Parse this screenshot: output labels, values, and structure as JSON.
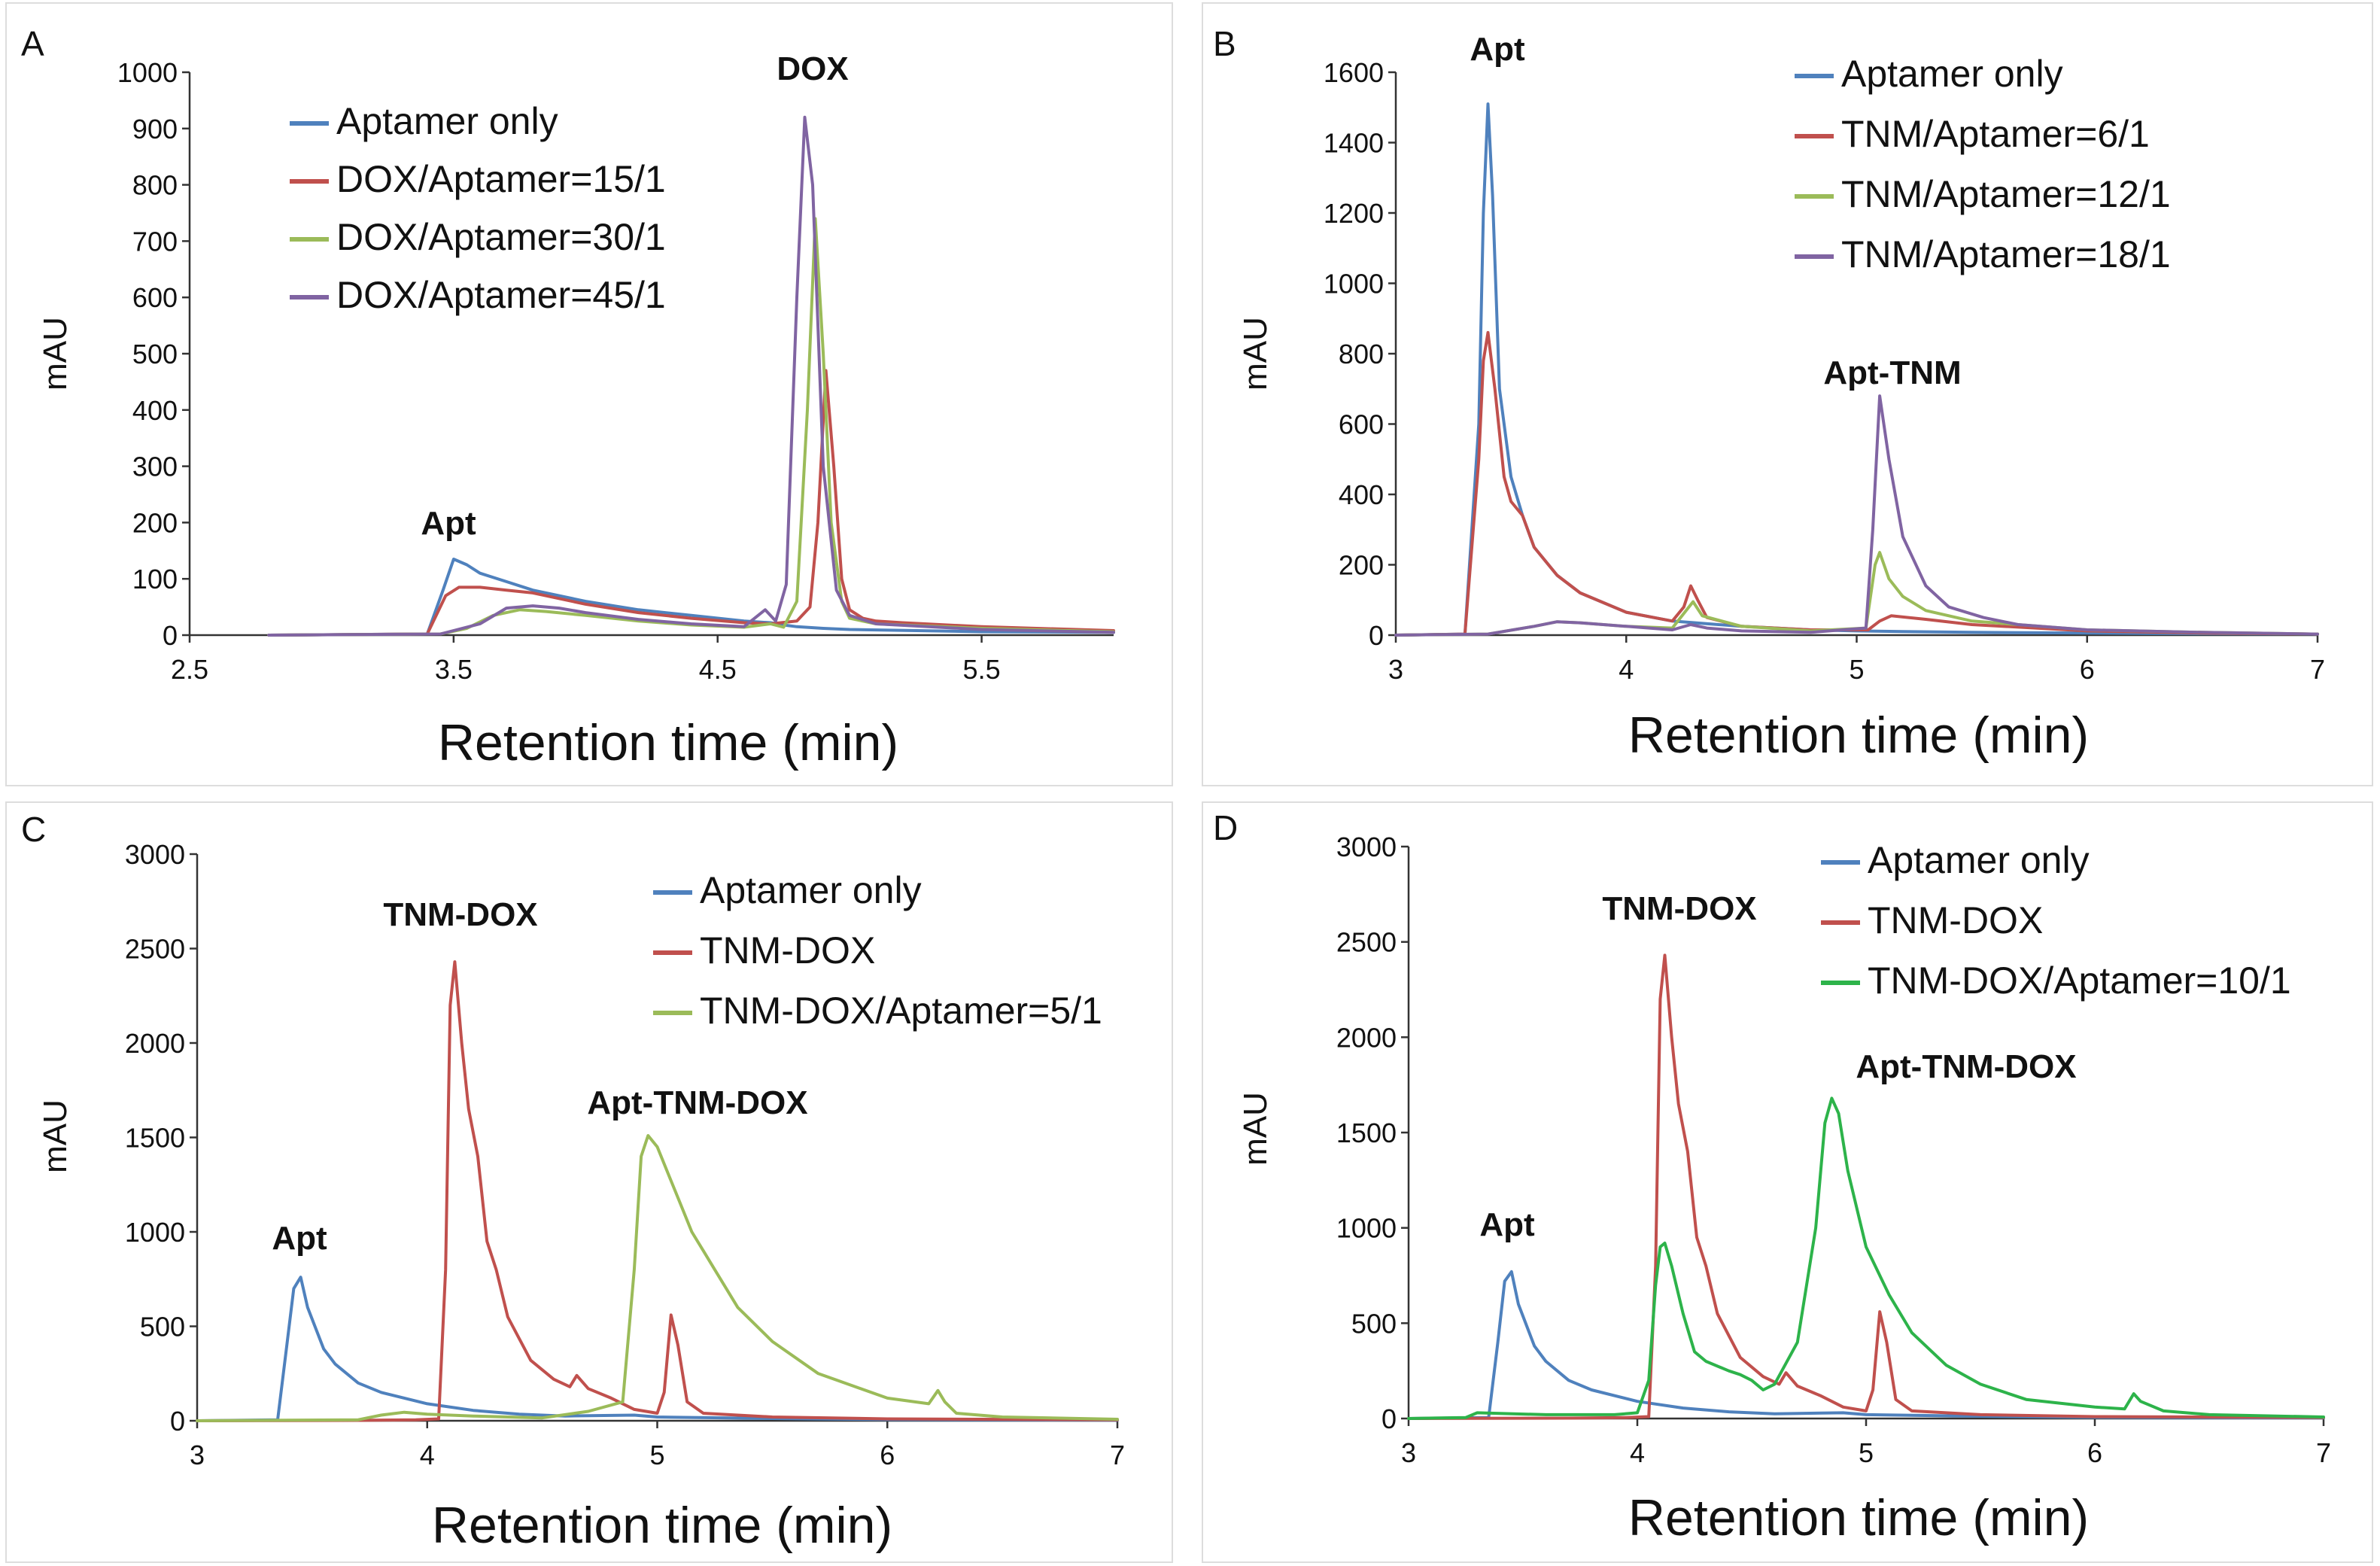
{
  "figure": {
    "panel_labels": [
      "A",
      "B",
      "C",
      "D"
    ]
  },
  "colors": {
    "blue": "#4f81bd",
    "red": "#c0504d",
    "lime": "#9bbb59",
    "purple": "#8064a2",
    "green": "#2db34a"
  },
  "chart_data": [
    {
      "panel": "A",
      "type": "line",
      "xlabel": "Retention time (min)",
      "ylabel": "mAU",
      "xlim": [
        2.5,
        6.0
      ],
      "ylim": [
        0,
        1000
      ],
      "xticks": [
        2.5,
        3.5,
        4.5,
        5.5
      ],
      "xtick_labels": [
        "2.5",
        "3.5",
        "4.5",
        "5.5"
      ],
      "yticks": [
        0,
        100,
        200,
        300,
        400,
        500,
        600,
        700,
        800,
        900,
        1000
      ],
      "ytick_labels": [
        "0",
        "100",
        "200",
        "300",
        "400",
        "500",
        "600",
        "700",
        "800",
        "900",
        "1000"
      ],
      "legend_position": "top-left",
      "annotations": [
        {
          "text": "DOX",
          "x": 4.85,
          "y": 1000
        },
        {
          "text": "Apt",
          "x": 3.45,
          "y": 190
        }
      ],
      "series": [
        {
          "name": "Aptamer only",
          "color": "#4f81bd",
          "x": [
            2.8,
            3.4,
            3.46,
            3.5,
            3.55,
            3.6,
            3.7,
            3.8,
            4.0,
            4.2,
            4.4,
            4.6,
            4.7,
            4.75,
            4.8,
            4.9,
            5.0,
            5.5,
            6.0
          ],
          "y": [
            0,
            2,
            80,
            135,
            125,
            110,
            95,
            80,
            60,
            45,
            35,
            25,
            22,
            18,
            15,
            12,
            10,
            6,
            5
          ]
        },
        {
          "name": "DOX/Aptamer=15/1",
          "color": "#c0504d",
          "x": [
            2.8,
            3.4,
            3.47,
            3.52,
            3.6,
            3.7,
            3.8,
            4.0,
            4.2,
            4.4,
            4.6,
            4.7,
            4.8,
            4.85,
            4.88,
            4.91,
            4.94,
            4.97,
            5.0,
            5.05,
            5.1,
            5.2,
            5.5,
            6.0
          ],
          "y": [
            0,
            2,
            70,
            85,
            85,
            80,
            75,
            55,
            40,
            30,
            22,
            20,
            25,
            50,
            200,
            470,
            300,
            100,
            45,
            30,
            25,
            22,
            15,
            8
          ]
        },
        {
          "name": "DOX/Aptamer=30/1",
          "color": "#9bbb59",
          "x": [
            2.8,
            3.45,
            3.55,
            3.65,
            3.75,
            3.85,
            4.0,
            4.2,
            4.4,
            4.6,
            4.7,
            4.75,
            4.8,
            4.84,
            4.87,
            4.9,
            4.93,
            4.97,
            5.0,
            5.1,
            5.5,
            6.0
          ],
          "y": [
            0,
            2,
            12,
            35,
            45,
            42,
            35,
            25,
            18,
            14,
            20,
            14,
            60,
            400,
            740,
            500,
            200,
            60,
            30,
            20,
            12,
            6
          ]
        },
        {
          "name": "DOX/Aptamer=45/1",
          "color": "#8064a2",
          "x": [
            2.8,
            3.45,
            3.6,
            3.7,
            3.8,
            3.9,
            4.0,
            4.2,
            4.4,
            4.6,
            4.68,
            4.72,
            4.76,
            4.8,
            4.83,
            4.86,
            4.9,
            4.95,
            5.0,
            5.1,
            5.5,
            6.0
          ],
          "y": [
            0,
            2,
            20,
            48,
            52,
            48,
            40,
            28,
            20,
            15,
            45,
            25,
            90,
            600,
            920,
            800,
            300,
            80,
            35,
            20,
            10,
            5
          ]
        }
      ]
    },
    {
      "panel": "B",
      "type": "line",
      "xlabel": "Retention time (min)",
      "ylabel": "mAU",
      "xlim": [
        3,
        7
      ],
      "ylim": [
        0,
        1600
      ],
      "xticks": [
        3,
        4,
        5,
        6,
        7
      ],
      "xtick_labels": [
        "3",
        "4",
        "5",
        "6",
        "7"
      ],
      "yticks": [
        0,
        200,
        400,
        600,
        800,
        1000,
        1200,
        1400,
        1600
      ],
      "ytick_labels": [
        "0",
        "200",
        "400",
        "600",
        "800",
        "1000",
        "1200",
        "1400",
        "1600"
      ],
      "legend_position": "top-right",
      "annotations": [
        {
          "text": "Apt",
          "x": 3.42,
          "y": 1600
        },
        {
          "text": "Apt-TNM",
          "x": 5.15,
          "y": 730
        }
      ],
      "series": [
        {
          "name": "Aptamer only",
          "color": "#4f81bd",
          "x": [
            3.0,
            3.3,
            3.36,
            3.38,
            3.4,
            3.42,
            3.45,
            3.5,
            3.55,
            3.6,
            3.7,
            3.8,
            4.0,
            4.2,
            4.5,
            4.8,
            5.0,
            5.2,
            5.5,
            6.0,
            6.5,
            7.0
          ],
          "y": [
            0,
            3,
            600,
            1200,
            1510,
            1250,
            700,
            450,
            340,
            250,
            170,
            120,
            65,
            40,
            25,
            15,
            12,
            10,
            8,
            6,
            4,
            3
          ]
        },
        {
          "name": "TNM/Aptamer=6/1",
          "color": "#c0504d",
          "x": [
            3.0,
            3.3,
            3.36,
            3.38,
            3.4,
            3.43,
            3.47,
            3.5,
            3.55,
            3.6,
            3.7,
            3.8,
            4.0,
            4.2,
            4.25,
            4.28,
            4.31,
            4.35,
            4.5,
            4.8,
            5.05,
            5.1,
            5.15,
            5.3,
            5.5,
            6.0,
            6.5,
            7.0
          ],
          "y": [
            0,
            3,
            500,
            780,
            860,
            700,
            450,
            380,
            340,
            250,
            170,
            120,
            65,
            40,
            80,
            140,
            100,
            50,
            25,
            15,
            15,
            40,
            55,
            45,
            30,
            12,
            6,
            3
          ]
        },
        {
          "name": "TNM/Aptamer=12/1",
          "color": "#9bbb59",
          "x": [
            3.0,
            3.4,
            3.6,
            3.7,
            3.8,
            4.0,
            4.2,
            4.26,
            4.29,
            4.33,
            4.5,
            4.8,
            5.04,
            5.08,
            5.1,
            5.14,
            5.2,
            5.3,
            5.5,
            6.0,
            6.5,
            7.0
          ],
          "y": [
            0,
            3,
            25,
            38,
            35,
            25,
            20,
            70,
            95,
            55,
            25,
            12,
            20,
            200,
            235,
            160,
            110,
            70,
            40,
            15,
            8,
            3
          ]
        },
        {
          "name": "TNM/Aptamer=18/1",
          "color": "#8064a2",
          "x": [
            3.0,
            3.4,
            3.6,
            3.7,
            3.8,
            4.0,
            4.2,
            4.28,
            4.35,
            4.5,
            4.8,
            5.04,
            5.07,
            5.1,
            5.14,
            5.2,
            5.3,
            5.4,
            5.55,
            5.7,
            6.0,
            6.5,
            7.0
          ],
          "y": [
            0,
            3,
            25,
            38,
            35,
            25,
            15,
            30,
            20,
            12,
            8,
            20,
            300,
            680,
            500,
            280,
            140,
            80,
            50,
            30,
            15,
            8,
            3
          ]
        }
      ]
    },
    {
      "panel": "C",
      "type": "line",
      "xlabel": "Retention time (min)",
      "ylabel": "mAU",
      "xlim": [
        3,
        7
      ],
      "ylim": [
        0,
        3000
      ],
      "xticks": [
        3,
        4,
        5,
        6,
        7
      ],
      "xtick_labels": [
        "3",
        "4",
        "5",
        "6",
        "7"
      ],
      "yticks": [
        0,
        500,
        1000,
        1500,
        2000,
        2500,
        3000
      ],
      "ytick_labels": [
        "0",
        "500",
        "1000",
        "1500",
        "2000",
        "2500",
        "3000"
      ],
      "legend_position": "top-right",
      "annotations": [
        {
          "text": "TNM-DOX",
          "x": 4.15,
          "y": 2630
        },
        {
          "text": "Apt-TNM-DOX",
          "x": 4.95,
          "y": 1620
        },
        {
          "text": "Apt",
          "x": 3.45,
          "y": 900
        }
      ],
      "series": [
        {
          "name": "Aptamer only",
          "color": "#4f81bd",
          "x": [
            3.0,
            3.35,
            3.39,
            3.42,
            3.45,
            3.48,
            3.55,
            3.6,
            3.7,
            3.8,
            4.0,
            4.2,
            4.4,
            4.6,
            4.9,
            5.0,
            5.5,
            6.0,
            7.0
          ],
          "y": [
            0,
            5,
            400,
            700,
            760,
            600,
            380,
            300,
            200,
            150,
            90,
            55,
            35,
            25,
            30,
            20,
            12,
            6,
            3
          ]
        },
        {
          "name": "TNM-DOX",
          "color": "#c0504d",
          "x": [
            3.0,
            3.7,
            3.95,
            4.05,
            4.08,
            4.1,
            4.12,
            4.15,
            4.18,
            4.22,
            4.26,
            4.3,
            4.35,
            4.45,
            4.55,
            4.62,
            4.65,
            4.7,
            4.8,
            4.9,
            5.0,
            5.03,
            5.06,
            5.09,
            5.13,
            5.2,
            5.5,
            6.0,
            7.0
          ],
          "y": [
            0,
            2,
            5,
            10,
            800,
            2200,
            2430,
            2000,
            1650,
            1400,
            950,
            800,
            550,
            320,
            220,
            180,
            240,
            170,
            120,
            60,
            40,
            150,
            560,
            400,
            100,
            40,
            20,
            10,
            5
          ]
        },
        {
          "name": "TNM-DOX/Aptamer=5/1",
          "color": "#9bbb59",
          "x": [
            3.0,
            3.7,
            3.8,
            3.9,
            4.0,
            4.2,
            4.5,
            4.7,
            4.85,
            4.9,
            4.93,
            4.96,
            5.0,
            5.05,
            5.1,
            5.15,
            5.2,
            5.25,
            5.35,
            5.5,
            5.7,
            6.0,
            6.18,
            6.22,
            6.25,
            6.3,
            6.5,
            7.0
          ],
          "y": [
            0,
            5,
            30,
            45,
            35,
            25,
            15,
            50,
            100,
            800,
            1400,
            1510,
            1450,
            1300,
            1150,
            1000,
            900,
            800,
            600,
            420,
            250,
            120,
            90,
            160,
            100,
            40,
            20,
            8
          ]
        }
      ]
    },
    {
      "panel": "D",
      "type": "line",
      "xlabel": "Retention time (min)",
      "ylabel": "mAU",
      "xlim": [
        3,
        7
      ],
      "ylim": [
        0,
        3000
      ],
      "xticks": [
        3,
        4,
        5,
        6,
        7
      ],
      "xtick_labels": [
        "3",
        "4",
        "5",
        "6",
        "7"
      ],
      "yticks": [
        0,
        500,
        1000,
        1500,
        2000,
        2500,
        3000
      ],
      "ytick_labels": [
        "0",
        "500",
        "1000",
        "1500",
        "2000",
        "2500",
        "3000"
      ],
      "legend_position": "top-right",
      "annotations": [
        {
          "text": "TNM-DOX",
          "x": 4.07,
          "y": 2600
        },
        {
          "text": "Apt-TNM-DOX",
          "x": 4.85,
          "y": 1830
        },
        {
          "text": "Apt",
          "x": 3.45,
          "y": 970
        }
      ],
      "series": [
        {
          "name": "Aptamer only",
          "color": "#4f81bd",
          "x": [
            3.0,
            3.35,
            3.39,
            3.42,
            3.45,
            3.48,
            3.55,
            3.6,
            3.7,
            3.8,
            4.0,
            4.2,
            4.4,
            4.6,
            4.9,
            5.0,
            5.5,
            6.0,
            7.0
          ],
          "y": [
            0,
            5,
            400,
            720,
            770,
            600,
            380,
            300,
            200,
            150,
            90,
            55,
            35,
            25,
            30,
            20,
            12,
            6,
            3
          ]
        },
        {
          "name": "TNM-DOX",
          "color": "#c0504d",
          "x": [
            3.0,
            3.7,
            3.95,
            4.05,
            4.08,
            4.1,
            4.12,
            4.15,
            4.18,
            4.22,
            4.26,
            4.3,
            4.35,
            4.45,
            4.55,
            4.62,
            4.65,
            4.7,
            4.8,
            4.9,
            5.0,
            5.03,
            5.06,
            5.09,
            5.13,
            5.2,
            5.5,
            6.0,
            7.0
          ],
          "y": [
            0,
            2,
            5,
            10,
            800,
            2200,
            2430,
            2000,
            1650,
            1400,
            950,
            800,
            550,
            320,
            220,
            180,
            240,
            170,
            120,
            60,
            40,
            150,
            560,
            400,
            100,
            40,
            20,
            10,
            5
          ]
        },
        {
          "name": "TNM-DOX/Aptamer=10/1",
          "color": "#2db34a",
          "x": [
            3.0,
            3.25,
            3.3,
            3.6,
            3.9,
            4.0,
            4.05,
            4.08,
            4.1,
            4.12,
            4.15,
            4.2,
            4.25,
            4.3,
            4.4,
            4.45,
            4.5,
            4.55,
            4.6,
            4.7,
            4.78,
            4.82,
            4.85,
            4.88,
            4.92,
            5.0,
            5.1,
            5.2,
            5.35,
            5.5,
            5.7,
            6.0,
            6.13,
            6.17,
            6.2,
            6.3,
            6.5,
            7.0
          ],
          "y": [
            0,
            5,
            30,
            20,
            20,
            30,
            200,
            700,
            900,
            920,
            800,
            550,
            350,
            300,
            250,
            230,
            200,
            150,
            180,
            400,
            1000,
            1550,
            1680,
            1600,
            1300,
            900,
            650,
            450,
            280,
            180,
            100,
            60,
            50,
            130,
            90,
            40,
            20,
            8
          ]
        }
      ]
    }
  ]
}
